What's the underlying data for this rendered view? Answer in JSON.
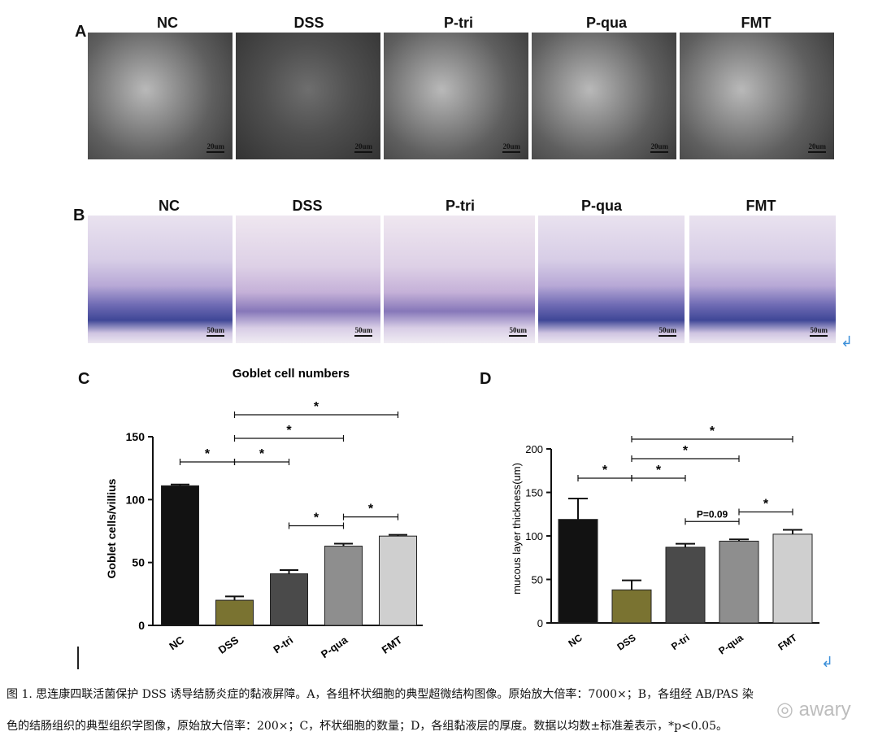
{
  "panelA": {
    "letter": "A",
    "groups": [
      "NC",
      "DSS",
      "P-tri",
      "P-qua",
      "FMT"
    ],
    "scale_label": "20um"
  },
  "panelB": {
    "letter": "B",
    "groups": [
      "NC",
      "DSS",
      "P-tri",
      "P-qua",
      "FMT"
    ],
    "scale_label": "50um",
    "return_mark": "↲"
  },
  "chart_data": [
    {
      "panel": "C",
      "type": "bar",
      "title": "Goblet cell numbers",
      "xlabel": "",
      "ylabel": "Goblet cells/villius",
      "categories": [
        "NC",
        "DSS",
        "P-tri",
        "P-qua",
        "FMT"
      ],
      "values": [
        111,
        20,
        41,
        63,
        71
      ],
      "errors": [
        1,
        3,
        3,
        2,
        1
      ],
      "colors": [
        "#121212",
        "#7a7331",
        "#4a4a4a",
        "#8e8e8e",
        "#cfcfcf"
      ],
      "ylim": [
        0,
        150
      ],
      "yticks": [
        0,
        50,
        100,
        150
      ],
      "brackets": [
        {
          "from": 0,
          "to": 1,
          "label": "*",
          "level": 0
        },
        {
          "from": 1,
          "to": 2,
          "label": "*",
          "level": 0
        },
        {
          "from": 1,
          "to": 3,
          "label": "*",
          "level": 1
        },
        {
          "from": 1,
          "to": 4,
          "label": "*",
          "level": 2
        },
        {
          "from": 2,
          "to": 3,
          "label": "*",
          "level": -1
        },
        {
          "from": 3,
          "to": 4,
          "label": "*",
          "level": -2
        }
      ]
    },
    {
      "panel": "D",
      "type": "bar",
      "title": "",
      "xlabel": "",
      "ylabel": "mucous layer thickness(um)",
      "categories": [
        "NC",
        "DSS",
        "P-tri",
        "P-qua",
        "FMT"
      ],
      "values": [
        119,
        38,
        87,
        94,
        102
      ],
      "errors": [
        24,
        11,
        4,
        2,
        5
      ],
      "colors": [
        "#121212",
        "#7a7331",
        "#4a4a4a",
        "#8e8e8e",
        "#cfcfcf"
      ],
      "ylim": [
        0,
        200
      ],
      "yticks": [
        0,
        50,
        100,
        150,
        200
      ],
      "brackets": [
        {
          "from": 0,
          "to": 1,
          "label": "*",
          "level": 0
        },
        {
          "from": 1,
          "to": 2,
          "label": "*",
          "level": 0
        },
        {
          "from": 1,
          "to": 3,
          "label": "*",
          "level": 1
        },
        {
          "from": 1,
          "to": 4,
          "label": "*",
          "level": 2
        },
        {
          "from": 2,
          "to": 3,
          "label": "P=0.09",
          "level": -1
        },
        {
          "from": 3,
          "to": 4,
          "label": "*",
          "level": -2
        }
      ]
    }
  ],
  "panelC": {
    "letter": "C"
  },
  "panelD": {
    "letter": "D",
    "return_mark": "↲"
  },
  "caption": {
    "line1": "图 1. 思连康四联活菌保护 DSS 诱导结肠炎症的黏液屏障。A，各组杯状细胞的典型超微结构图像。原始放大倍率：7000×；B，各组经 AB/PAS 染",
    "line2": "色的结肠组织的典型组织学图像，原始放大倍率：200×；C，杯状细胞的数量；D，各组黏液层的厚度。数据以均数±标准差表示，*p<0.05。"
  },
  "watermark": "awary"
}
